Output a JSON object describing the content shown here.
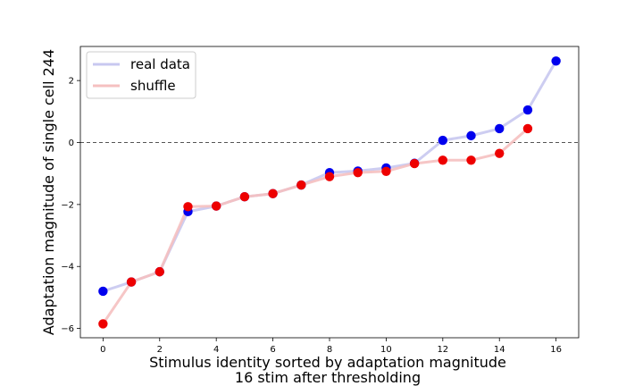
{
  "chart_data": {
    "type": "line",
    "title": "",
    "xlabel": "Stimulus identity sorted by adaptation magnitude",
    "xlabel2": "16 stim after thresholding",
    "ylabel": "Adaptation magnitude of single cell 244",
    "xlim": [
      -0.8,
      16.8
    ],
    "ylim": [
      -6.3,
      3.1
    ],
    "xticks": [
      0,
      2,
      4,
      6,
      8,
      10,
      12,
      14,
      16
    ],
    "yticks": [
      -6,
      -4,
      -2,
      0,
      2
    ],
    "xtick_labels": [
      "0",
      "2",
      "4",
      "6",
      "8",
      "10",
      "12",
      "14",
      "16"
    ],
    "ytick_labels": [
      "−6",
      "−4",
      "−2",
      "0",
      "2"
    ],
    "reference_line": 0,
    "grid": false,
    "legend_position": "top-left",
    "series": [
      {
        "name": "real data",
        "line_color": "#c8c8f0",
        "marker_color": "#0000ee",
        "x": [
          0,
          1,
          2,
          3,
          4,
          5,
          6,
          7,
          8,
          9,
          10,
          11,
          12,
          13,
          14,
          15,
          16
        ],
        "y": [
          -4.8,
          -4.5,
          -4.17,
          -2.23,
          -2.05,
          -1.75,
          -1.65,
          -1.37,
          -0.97,
          -0.92,
          -0.82,
          -0.67,
          0.07,
          0.22,
          0.45,
          1.05,
          2.63
        ]
      },
      {
        "name": "shuffle",
        "line_color": "#f5c0c0",
        "marker_color": "#ee0000",
        "x": [
          0,
          1,
          2,
          3,
          4,
          5,
          6,
          7,
          8,
          9,
          10,
          11,
          12,
          13,
          14,
          15
        ],
        "y": [
          -5.85,
          -4.5,
          -4.17,
          -2.07,
          -2.05,
          -1.75,
          -1.65,
          -1.37,
          -1.1,
          -0.97,
          -0.93,
          -0.68,
          -0.57,
          -0.57,
          -0.35,
          0.45
        ]
      }
    ]
  }
}
